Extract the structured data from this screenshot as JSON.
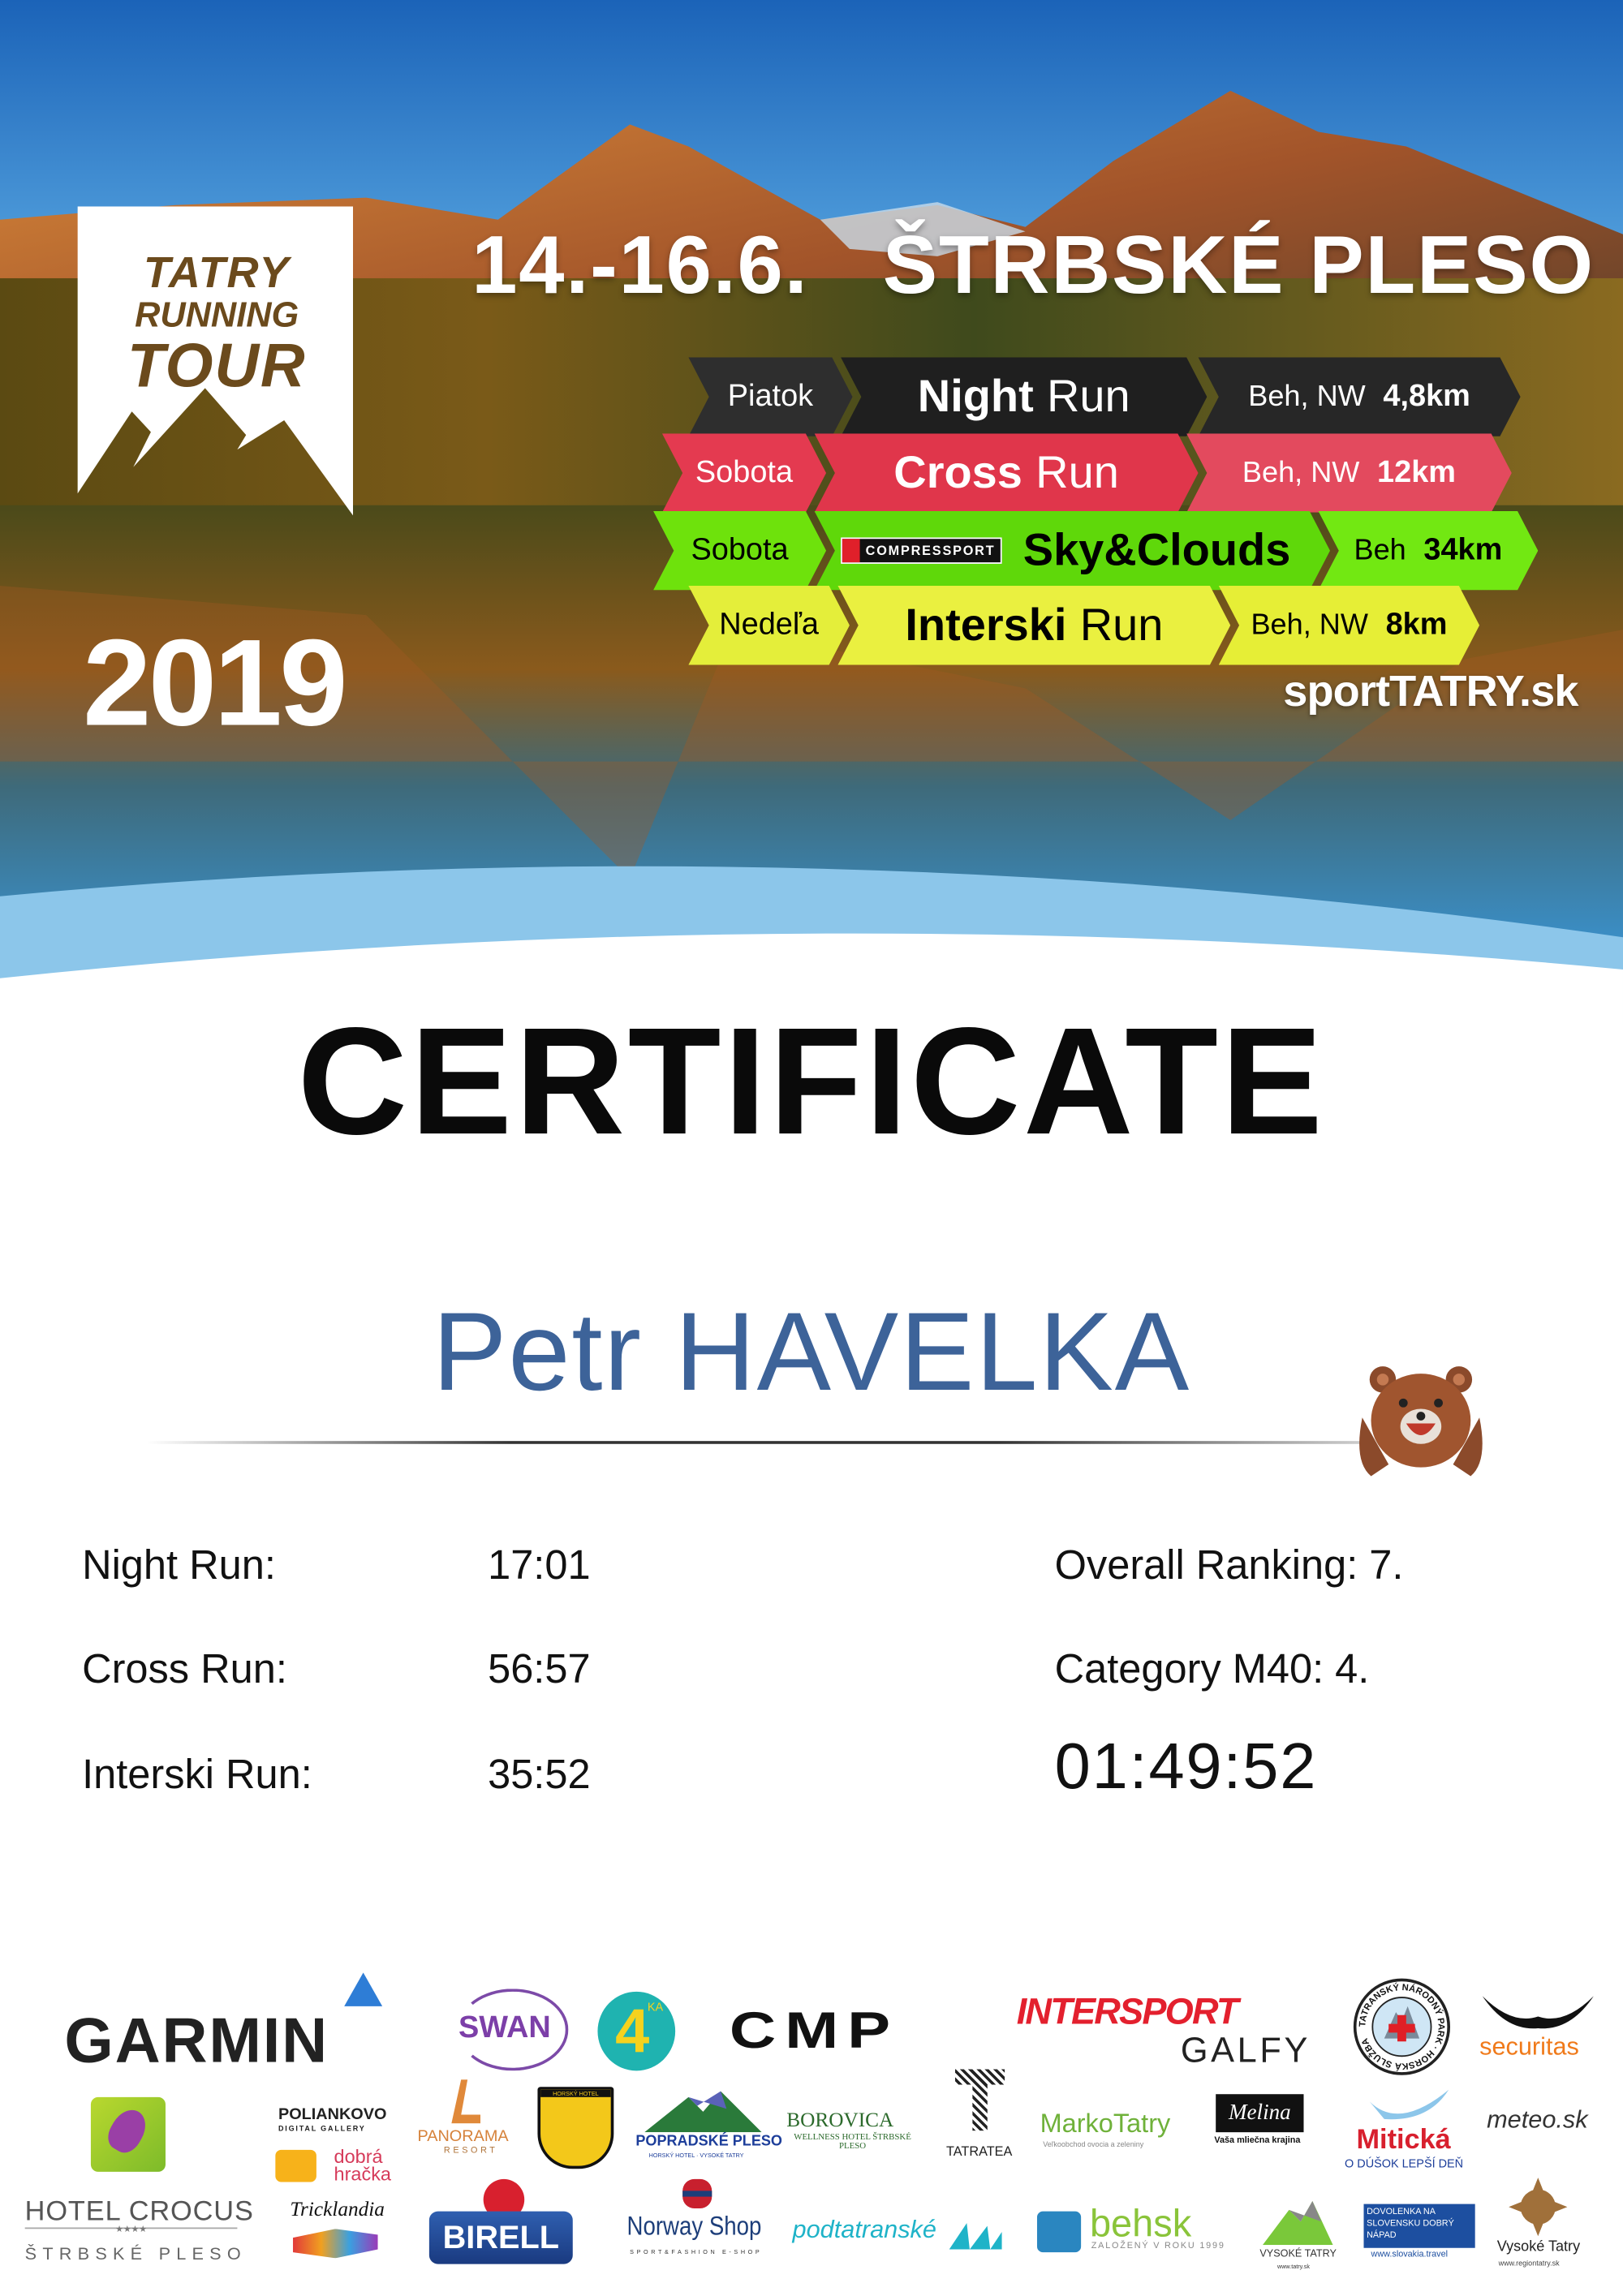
{
  "event": {
    "logo_lines": [
      "TATRY",
      "RUNNING",
      "TOUR"
    ],
    "year": "2019",
    "dates": "14.-16.6.",
    "location": "ŠTRBSKÉ PLESO",
    "website": "sportTATRY.sk"
  },
  "races": [
    {
      "day": "Piatok",
      "name_bold": "Night",
      "name_rest": "Run",
      "type": "Beh, NW",
      "distance": "4,8km",
      "color": "#232323",
      "text_color": "#ffffff"
    },
    {
      "day": "Sobota",
      "name_bold": "Cross",
      "name_rest": "Run",
      "type": "Beh, NW",
      "distance": "12km",
      "color": "#e2364c",
      "text_color": "#ffffff"
    },
    {
      "day": "Sobota",
      "sponsor": "COMPRESSPORT",
      "name_bold": "Sky&Clouds",
      "name_rest": "",
      "type": "Beh",
      "distance": "34km",
      "color": "#6de40a",
      "text_color": "#000000"
    },
    {
      "day": "Nedeľa",
      "name_bold": "Interski",
      "name_rest": "Run",
      "type": "Beh, NW",
      "distance": "8km",
      "color": "#e9f03e",
      "text_color": "#000000"
    }
  ],
  "certificate": {
    "title": "CERTIFICATE",
    "participant": "Petr HAVELKA",
    "name_color": "#3d6399",
    "results": [
      {
        "label": "Night Run:",
        "time": "17:01"
      },
      {
        "label": "Cross Run:",
        "time": "56:57"
      },
      {
        "label": "Interski Run:",
        "time": "35:52"
      }
    ],
    "overall_ranking": "Overall Ranking: 7.",
    "category_ranking": "Category M40: 4.",
    "total_time": "01:49:52"
  },
  "sponsors": {
    "garmin": "GARMIN",
    "swan": "SWAN",
    "fourka": "4",
    "fourka_sup": "KA",
    "cmp": "CMP",
    "intersport": "INTERSPORT",
    "galfy": "GALFY",
    "tnp": "TATRANSKÝ NÁRODNÝ PARK · HORSKÁ SLUŽBA",
    "securitas": "securitas",
    "poliankovo": "POLIANKOVO",
    "poliankovo_sub": "DIGITAL GALLERY",
    "dobra_hracka": "dobrá hračka",
    "panorama": "PANORAMA",
    "panorama_sub": "RESORT",
    "sliezsky_dom": "HORSKÝ HOTEL",
    "popradske_pleso": "POPRADSKÉ PLESO",
    "popradske_sub": "HORSKÝ HOTEL · VYSOKÉ TATRY",
    "borovica": "BOROVICA",
    "borovica_sub": "WELLNESS HOTEL ŠTRBSKÉ PLESO",
    "tatratea": "TATRATEA",
    "marko": "MarkoTatry",
    "marko_sub": "Veľkoobchod ovocia a zeleniny",
    "melina": "Melina",
    "melina_sub": "Vaša mliečna krajina",
    "miticka": "Mitická",
    "miticka_sub": "O DÚŠOK LEPŠÍ DEŇ",
    "meteo": "meteo.sk",
    "crocus": "HOTEL CROCUS",
    "crocus_stars": "★★★★",
    "crocus_sub": "ŠTRBSKÉ PLESO",
    "tricklandia": "Tricklandia",
    "birell": "BIRELL",
    "norway": "Norway Shop",
    "norway_sub": "SPORT&FASHION E-SHOP",
    "podtatranske": "podtatranské",
    "behsk": "behsk",
    "behsk_sub": "ZALOŽENÝ V ROKU 1999",
    "vt_zdruzenie": "VYSOKÉ TATRY",
    "vt_url": "www.tatry.sk",
    "dovolenka": "DOVOLENKA NA SLOVENSKU DOBRÝ NÁPAD",
    "dovolenka_url": "www.slovakia.travel",
    "vt_region": "Vysoké Tatry",
    "vt_region_url": "www.regiontatry.sk"
  }
}
